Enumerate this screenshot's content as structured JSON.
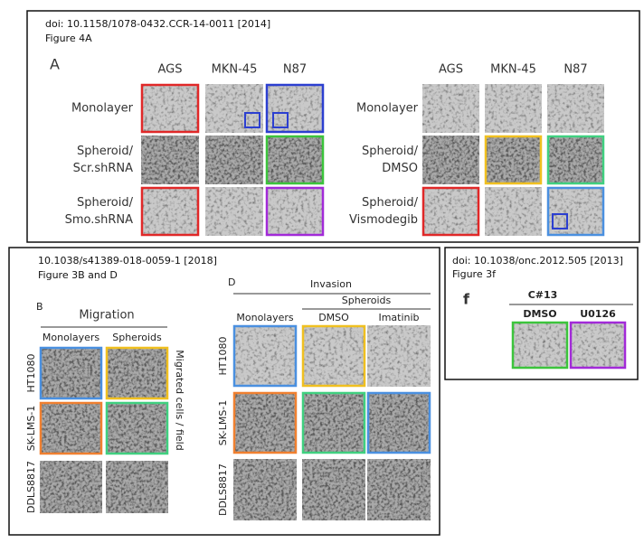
{
  "panels": [
    {
      "citation": "doi: 10.1158/1078-0432.CCR-14-0011 [2014]",
      "figure": "Figure 4A",
      "label": "A",
      "groups": [
        {
          "columns": [
            "AGS",
            "MKN-45",
            "N87"
          ],
          "rows": [
            [
              "Monolayer"
            ],
            [
              "Spheroid/",
              "Scr.shRNA"
            ],
            [
              "Spheroid/",
              "Smo.shRNA"
            ]
          ]
        },
        {
          "columns": [
            "AGS",
            "MKN-45",
            "N87"
          ],
          "rows": [
            [
              "Monolayer"
            ],
            [
              "Spheroid/",
              "DMSO"
            ],
            [
              "Spheroid/",
              "Vismodegib"
            ]
          ]
        }
      ]
    },
    {
      "citation": "10.1038/s41389-018-0059-1 [2018]",
      "figure": "Figure 3B and D",
      "groups": [
        {
          "label": "B",
          "title": "Migration",
          "columns": [
            "Monolayers",
            "Spheroids"
          ],
          "rows": [
            "HT1080",
            "SK-LMS-1",
            "DDLS8817"
          ],
          "side_label": "Migrated cells / field"
        },
        {
          "label": "D",
          "title": "Invasion",
          "subtitle": "Spheroids",
          "columns": [
            "Monolayers",
            "DMSO",
            "Imatinib"
          ],
          "rows": [
            "HT1080",
            "SK-LMS-1",
            "DDLS8817"
          ]
        }
      ]
    },
    {
      "citation": "doi: 10.1038/onc.2012.505 [2013]",
      "figure": "Figure 3f",
      "label": "f",
      "groups": [
        {
          "title": "C#13",
          "columns": [
            "DMSO",
            "U0126"
          ]
        }
      ]
    }
  ]
}
